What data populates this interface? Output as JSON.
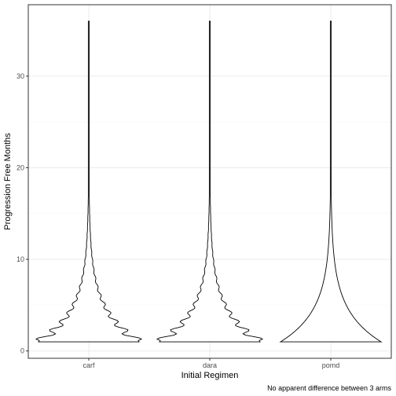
{
  "chart_data": {
    "type": "violin",
    "xlabel": "Initial Regimen",
    "ylabel": "Progression Free Months",
    "caption": "No apparent difference between 3 arms",
    "categories": [
      "carf",
      "dara",
      "pomd"
    ],
    "ylim": [
      -0.8,
      37.8
    ],
    "yticks": [
      0,
      10,
      20,
      30
    ],
    "grid": true,
    "theme": "black-and-white",
    "violins": [
      {
        "category": "carf",
        "min": 1,
        "max": 36,
        "wavy": true
      },
      {
        "category": "dara",
        "min": 1,
        "max": 36,
        "wavy": true
      },
      {
        "category": "pomd",
        "min": 1,
        "max": 36,
        "wavy": false
      }
    ],
    "colors": {
      "outline": "#000000",
      "grid_major": "#ebebeb",
      "grid_minor": "#f5f5f5",
      "panel_border": "#333333",
      "tick_text": "#4d4d4d"
    }
  }
}
